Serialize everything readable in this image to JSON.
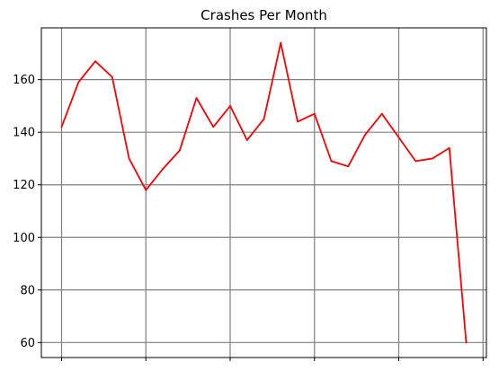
{
  "chart_data": {
    "type": "line",
    "title": "Crashes Per Month",
    "xlabel": "",
    "ylabel": "",
    "x": [
      0,
      1,
      2,
      3,
      4,
      5,
      6,
      7,
      8,
      9,
      10,
      11,
      12,
      13,
      14,
      15,
      16,
      17,
      18,
      19,
      20,
      21,
      22,
      23,
      24
    ],
    "series": [
      {
        "values": [
          142,
          159,
          167,
          161,
          130,
          118,
          126,
          133,
          153,
          142,
          150,
          137,
          145,
          174,
          144,
          147,
          129,
          127,
          139,
          147,
          138,
          129,
          130,
          134,
          60
        ]
      }
    ],
    "xlim": [
      -1.2,
      25.2
    ],
    "ylim": [
      54.3,
      179.7
    ],
    "yticks": [
      60,
      80,
      100,
      120,
      140,
      160
    ],
    "xticks": [
      0,
      5,
      10,
      15,
      20,
      25
    ],
    "show_x_tick_labels": false,
    "grid": true,
    "colors": {
      "line": "#ff0000",
      "grid": "#808080",
      "axes": "#000000"
    }
  }
}
